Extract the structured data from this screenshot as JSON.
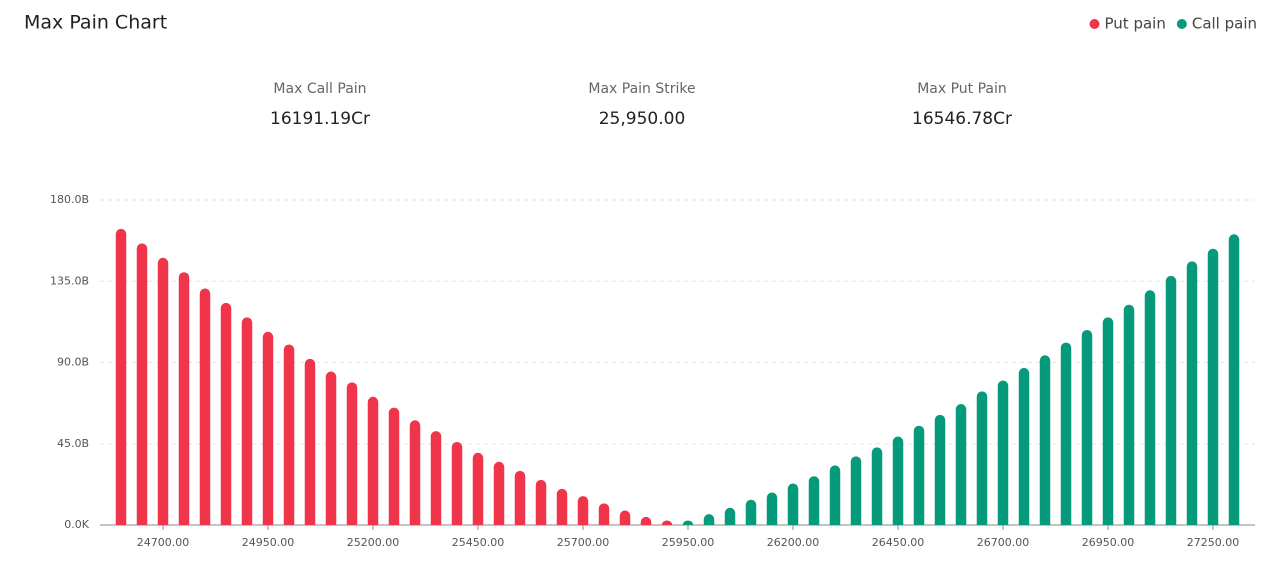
{
  "chart_data": {
    "type": "bar",
    "title": "Max Pain Chart",
    "stats": [
      {
        "label": "Max Call Pain",
        "value": "16191.19Cr"
      },
      {
        "label": "Max Pain Strike",
        "value": "25,950.00"
      },
      {
        "label": "Max Put Pain",
        "value": "16546.78Cr"
      }
    ],
    "categories": [
      null,
      null,
      "24700.00",
      null,
      null,
      null,
      null,
      "24950.00",
      null,
      null,
      null,
      null,
      "25200.00",
      null,
      null,
      null,
      null,
      "25450.00",
      null,
      null,
      null,
      null,
      "25700.00",
      null,
      null,
      null,
      null,
      "25950.00",
      null,
      null,
      null,
      null,
      "26200.00",
      null,
      null,
      null,
      null,
      "26450.00",
      null,
      null,
      null,
      null,
      "26700.00",
      null,
      null,
      null,
      null,
      "26950.00",
      null,
      null,
      null,
      null,
      "27250.00",
      null
    ],
    "series": [
      {
        "name": "Put pain",
        "color": "#f0344a",
        "values": [
          164,
          156,
          148,
          140,
          131,
          123,
          115,
          107,
          100,
          92,
          85,
          79,
          71,
          65,
          58,
          52,
          46,
          40,
          35,
          30,
          25,
          20,
          16,
          12,
          8,
          4.5,
          2.5,
          null,
          null,
          null,
          null,
          null,
          null,
          null,
          null,
          null,
          null,
          null,
          null,
          null,
          null,
          null,
          null,
          null,
          null,
          null,
          null,
          null,
          null,
          null,
          null,
          null,
          null,
          null
        ]
      },
      {
        "name": "Call pain",
        "color": "#069a7c",
        "values": [
          null,
          null,
          null,
          null,
          null,
          null,
          null,
          null,
          null,
          null,
          null,
          null,
          null,
          null,
          null,
          null,
          null,
          null,
          null,
          null,
          null,
          null,
          null,
          null,
          null,
          null,
          null,
          2.5,
          6,
          9.5,
          14,
          18,
          23,
          27,
          33,
          38,
          43,
          49,
          55,
          61,
          67,
          74,
          80,
          87,
          94,
          101,
          108,
          115,
          122,
          130,
          138,
          146,
          153,
          161
        ]
      }
    ],
    "ylim": [
      0,
      180
    ],
    "yticks": [
      {
        "value": 0,
        "label": "0.0K"
      },
      {
        "value": 45,
        "label": "45.0B"
      },
      {
        "value": 90,
        "label": "90.0B"
      },
      {
        "value": 135,
        "label": "135.0B"
      },
      {
        "value": 180,
        "label": "180.0B"
      }
    ],
    "grid": true
  }
}
